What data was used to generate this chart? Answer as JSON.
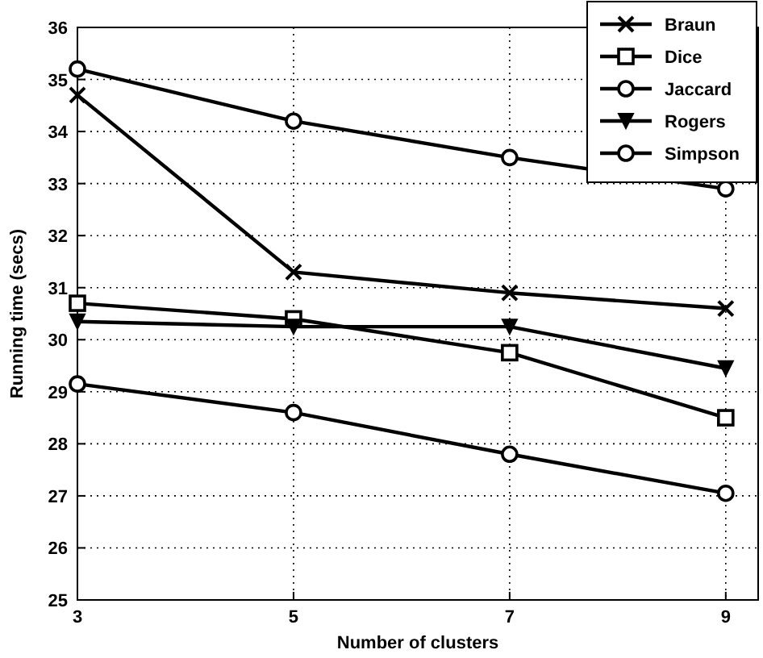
{
  "chart_data": {
    "type": "line",
    "xlabel": "Number of clusters",
    "ylabel": "Running time (secs)",
    "x": [
      3,
      5,
      7,
      9
    ],
    "xlim": [
      3,
      9.3
    ],
    "xticks": [
      3,
      5,
      7,
      9
    ],
    "ylim": [
      25,
      36
    ],
    "yticks": [
      25,
      26,
      27,
      28,
      29,
      30,
      31,
      32,
      33,
      34,
      35,
      36
    ],
    "grid": true,
    "legend": "top right",
    "series": [
      {
        "name": "Braun",
        "color": "#000000",
        "marker": "cross",
        "values": [
          34.7,
          31.3,
          30.9,
          30.6
        ]
      },
      {
        "name": "Dice",
        "color": "#000000",
        "marker": "square",
        "values": [
          30.7,
          30.4,
          29.75,
          28.5
        ]
      },
      {
        "name": "Jaccard",
        "color": "#000000",
        "marker": "circle",
        "values": [
          29.15,
          28.6,
          27.8,
          27.05
        ]
      },
      {
        "name": "Rogers",
        "color": "#000000",
        "marker": "triangle",
        "values": [
          30.35,
          30.25,
          30.25,
          29.45
        ]
      },
      {
        "name": "Simpson",
        "color": "#000000",
        "marker": "circle",
        "values": [
          35.2,
          34.2,
          33.5,
          32.9
        ]
      }
    ]
  }
}
